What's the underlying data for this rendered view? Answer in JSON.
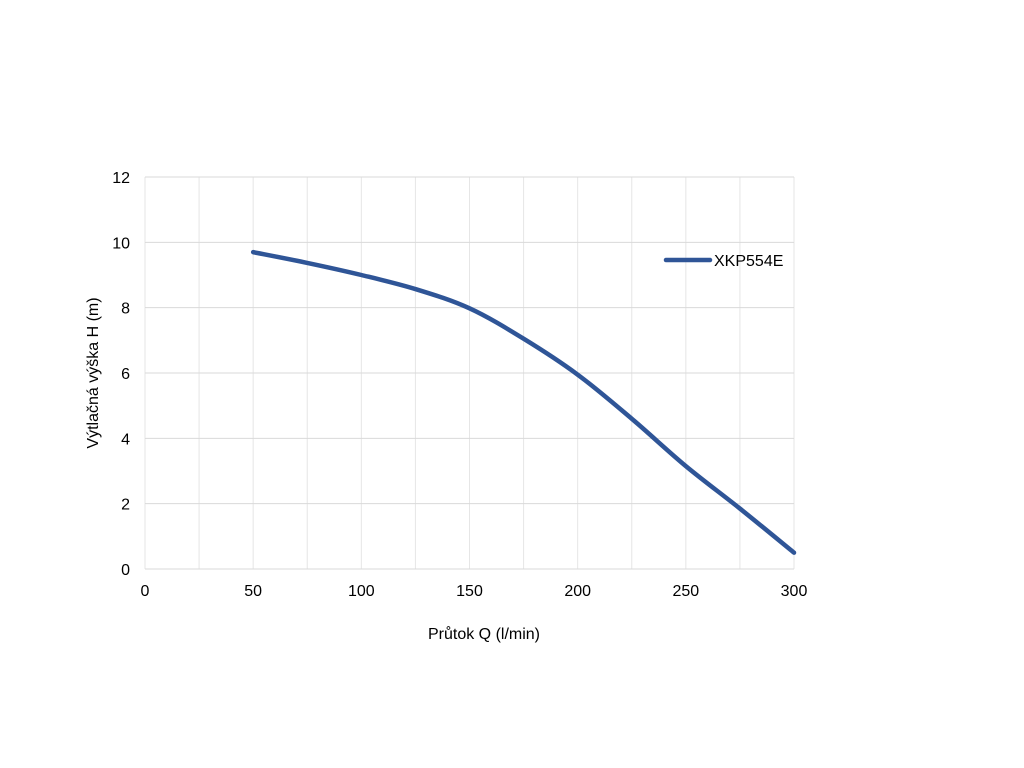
{
  "chart_data": {
    "type": "line",
    "title": "",
    "xlabel": "Průtok Q (l/min)",
    "ylabel": "Výtlačná výška H (m)",
    "xlim": [
      0,
      300
    ],
    "ylim": [
      0,
      12
    ],
    "x_ticks": [
      0,
      50,
      100,
      150,
      200,
      250,
      300
    ],
    "y_ticks": [
      0,
      2,
      4,
      6,
      8,
      10,
      12
    ],
    "x_minor_grid_step": 25,
    "grid": true,
    "legend_position": "right",
    "series": [
      {
        "name": "XKP554E",
        "color": "#2F5597",
        "x": [
          50,
          75,
          100,
          125,
          150,
          175,
          200,
          225,
          250,
          275,
          300
        ],
        "y": [
          9.7,
          9.37,
          9.0,
          8.57,
          7.98,
          7.05,
          5.95,
          4.6,
          3.15,
          1.85,
          0.5
        ]
      }
    ]
  }
}
